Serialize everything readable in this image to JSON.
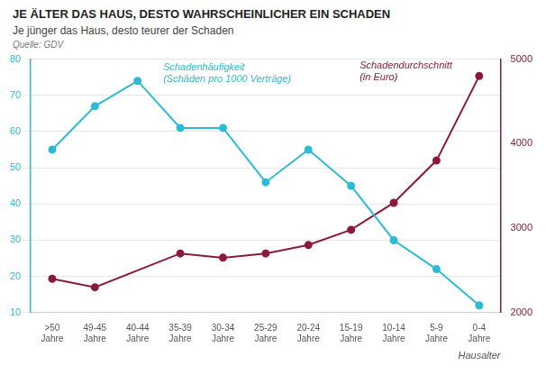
{
  "chart_data": {
    "type": "line",
    "title": "JE ÄLTER DAS HAUS, DESTO WAHRSCHEINLICHER EIN SCHADEN",
    "subtitle": "Je jünger das Haus, desto teurer der Schaden",
    "source": "Quelle: GDV",
    "xlabel": "Hausalter",
    "categories": [
      ">50\nJahre",
      "49-45\nJahre",
      "40-44\nJahre",
      "35-39\nJahre",
      "30-34\nJahre",
      "25-29\nJahre",
      "20-24\nJahre",
      "15-19\nJahre",
      "10-14\nJahre",
      "5-9\nJahre",
      "0-4\nJahre"
    ],
    "series": [
      {
        "color": "#2BBCD4",
        "marker": "circle",
        "line_style": "solid",
        "values": [
          55,
          67,
          74,
          61,
          61,
          46,
          55,
          45,
          30,
          22,
          12
        ]
      },
      {
        "color": "#8B1A3A",
        "marker": "circle",
        "line_style": "solid",
        "axis": "y2",
        "values": [
          2400,
          2300,
          null,
          2700,
          2650,
          2700,
          2800,
          2980,
          3300,
          3800,
          4800
        ]
      }
    ],
    "ylim": [
      10,
      80
    ],
    "yticks": [
      10,
      20,
      30,
      40,
      50,
      60,
      70,
      80
    ],
    "y2lim": [
      2000,
      5000
    ],
    "y2ticks": [
      2000,
      3000,
      4000,
      5000
    ],
    "grid": true,
    "annotations": [
      {
        "text": "Schadenhäufigkeit\n(Schäden pro 1000 Verträge)",
        "color": "#2BBCD4"
      },
      {
        "text": "Schadendurchschnitt\n(in Euro)",
        "color": "#8B1A3A"
      }
    ]
  }
}
